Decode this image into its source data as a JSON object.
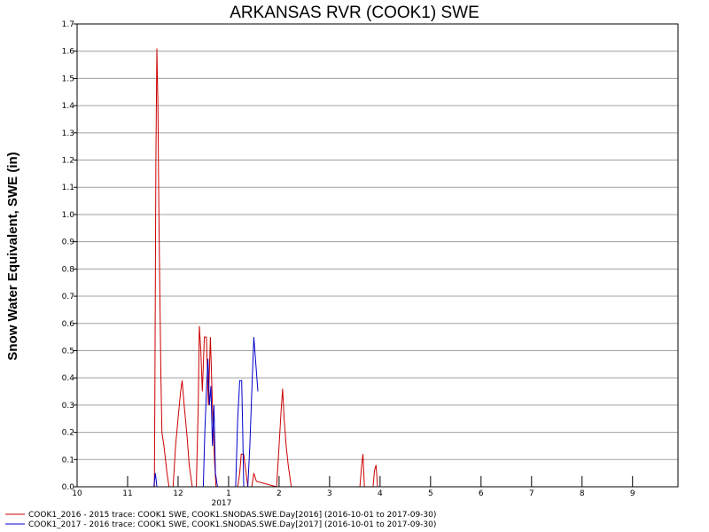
{
  "chart_data": {
    "type": "line",
    "title": "ARKANSAS RVR (COOK1) SWE",
    "ylabel": "Snow Water Equivalent, SWE (in)",
    "xlabel": "",
    "ylim": [
      0,
      1.7
    ],
    "yticks": [
      "0.0",
      "0.1",
      "0.2",
      "0.3",
      "0.4",
      "0.5",
      "0.6",
      "0.7",
      "0.8",
      "0.9",
      "1.0",
      "1.1",
      "1.2",
      "1.3",
      "1.4",
      "1.5",
      "1.6",
      "1.7"
    ],
    "xlim": [
      0,
      11.9
    ],
    "xticks": [
      {
        "pos": 0,
        "label": "10"
      },
      {
        "pos": 1,
        "label": "11"
      },
      {
        "pos": 2,
        "label": "12"
      },
      {
        "pos": 3,
        "label": "1"
      },
      {
        "pos": 4,
        "label": "2"
      },
      {
        "pos": 5,
        "label": "3"
      },
      {
        "pos": 6,
        "label": "4"
      },
      {
        "pos": 7,
        "label": "5"
      },
      {
        "pos": 8,
        "label": "6"
      },
      {
        "pos": 9,
        "label": "7"
      },
      {
        "pos": 10,
        "label": "8"
      },
      {
        "pos": 11,
        "label": "9"
      }
    ],
    "year_label": {
      "pos": 3,
      "label": "2017"
    },
    "grid": true,
    "series": [
      {
        "name": "COOK1_2016 - 2015 trace: COOK1 SWE, COOK1.SNODAS.SWE.Day[2016] (2016-10-01 to 2017-09-30)",
        "color": "#cc0000",
        "points": [
          [
            1.53,
            0
          ],
          [
            1.54,
            0.3
          ],
          [
            1.56,
            1.2
          ],
          [
            1.58,
            1.61
          ],
          [
            1.6,
            1.4
          ],
          [
            1.62,
            1.0
          ],
          [
            1.64,
            0.7
          ],
          [
            1.66,
            0.4
          ],
          [
            1.68,
            0.2
          ],
          [
            1.72,
            0.15
          ],
          [
            1.78,
            0.05
          ],
          [
            1.82,
            0
          ],
          [
            1.9,
            0
          ],
          [
            1.95,
            0.15
          ],
          [
            2.0,
            0.25
          ],
          [
            2.05,
            0.35
          ],
          [
            2.08,
            0.39
          ],
          [
            2.12,
            0.3
          ],
          [
            2.18,
            0.18
          ],
          [
            2.22,
            0.08
          ],
          [
            2.28,
            0
          ],
          [
            2.36,
            0
          ],
          [
            2.4,
            0.3
          ],
          [
            2.42,
            0.59
          ],
          [
            2.45,
            0.5
          ],
          [
            2.48,
            0.35
          ],
          [
            2.52,
            0.55
          ],
          [
            2.56,
            0.55
          ],
          [
            2.6,
            0.3
          ],
          [
            2.64,
            0.55
          ],
          [
            2.68,
            0.3
          ],
          [
            2.72,
            0.1
          ],
          [
            2.75,
            0
          ],
          [
            3.18,
            0
          ],
          [
            3.22,
            0.05
          ],
          [
            3.25,
            0.12
          ],
          [
            3.3,
            0.12
          ],
          [
            3.34,
            0.06
          ],
          [
            3.38,
            0
          ],
          [
            3.46,
            0
          ],
          [
            3.5,
            0.05
          ],
          [
            3.55,
            0.02
          ],
          [
            3.95,
            0
          ],
          [
            4.0,
            0.15
          ],
          [
            4.04,
            0.28
          ],
          [
            4.07,
            0.36
          ],
          [
            4.1,
            0.25
          ],
          [
            4.14,
            0.15
          ],
          [
            4.18,
            0.08
          ],
          [
            4.24,
            0
          ],
          [
            5.6,
            0
          ],
          [
            5.63,
            0.07
          ],
          [
            5.66,
            0.12
          ],
          [
            5.69,
            0
          ],
          [
            5.86,
            0
          ],
          [
            5.89,
            0.06
          ],
          [
            5.92,
            0.08
          ],
          [
            5.95,
            0
          ]
        ]
      },
      {
        "name": "COOK1_2017 - 2016 trace: COOK1 SWE, COOK1.SNODAS.SWE.Day[2017] (2016-10-01 to 2017-09-30)",
        "color": "#0000cc",
        "points": [
          [
            1.52,
            0
          ],
          [
            1.55,
            0.05
          ],
          [
            1.58,
            0
          ],
          [
            2.5,
            0
          ],
          [
            2.53,
            0.2
          ],
          [
            2.56,
            0.35
          ],
          [
            2.59,
            0.47
          ],
          [
            2.62,
            0.3
          ],
          [
            2.65,
            0.37
          ],
          [
            2.68,
            0.15
          ],
          [
            2.71,
            0.3
          ],
          [
            2.74,
            0.05
          ],
          [
            2.78,
            0
          ],
          [
            3.14,
            0
          ],
          [
            3.18,
            0.25
          ],
          [
            3.22,
            0.39
          ],
          [
            3.26,
            0.39
          ],
          [
            3.28,
            0.2
          ],
          [
            3.3,
            0
          ],
          [
            3.38,
            0
          ],
          [
            3.42,
            0.15
          ],
          [
            3.46,
            0.35
          ],
          [
            3.5,
            0.55
          ],
          [
            3.54,
            0.45
          ],
          [
            3.58,
            0.35
          ]
        ]
      }
    ]
  }
}
